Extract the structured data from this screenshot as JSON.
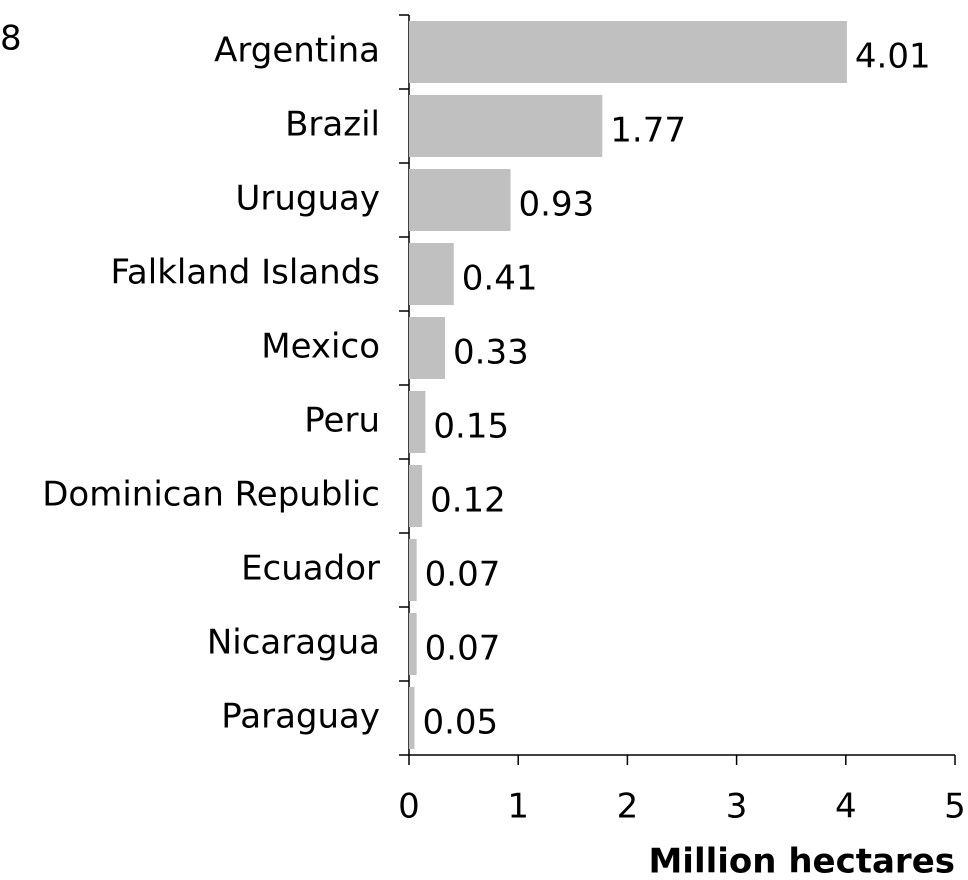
{
  "chart_data": {
    "type": "barh",
    "annotation": "8",
    "categories": [
      "Argentina",
      "Brazil",
      "Uruguay",
      "Falkland Islands",
      "Mexico",
      "Peru",
      "Dominican Republic",
      "Ecuador",
      "Nicaragua",
      "Paraguay"
    ],
    "values": [
      4.01,
      1.77,
      0.93,
      0.41,
      0.33,
      0.15,
      0.12,
      0.07,
      0.07,
      0.05
    ],
    "color": "#c0c0c0",
    "xlim": [
      0,
      5
    ],
    "xticks": [
      0,
      1,
      2,
      3,
      4,
      5
    ],
    "xlabel": "Million hectares"
  }
}
